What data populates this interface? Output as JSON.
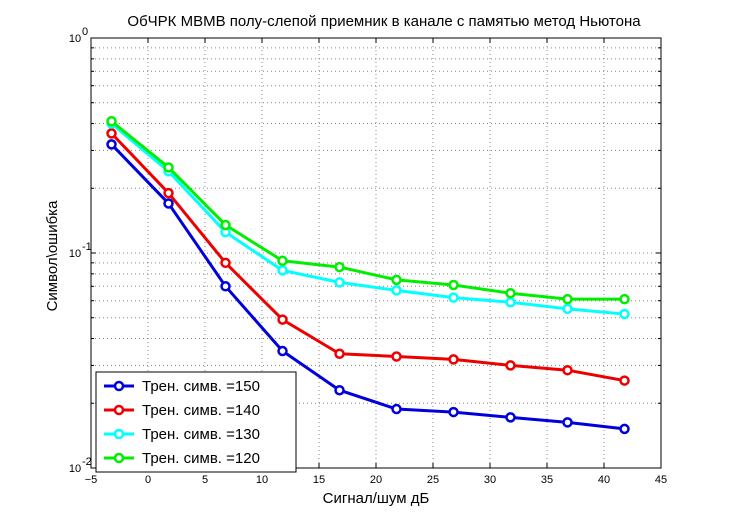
{
  "chart_data": {
    "type": "line",
    "title": "ОбЧРК МВМВ полу-слепой приемник в канале с памятью метод Ньютона",
    "xlabel": "Сигнал/шум дБ",
    "ylabel": "Символ\\ошибка",
    "xlim": [
      -5,
      45
    ],
    "ylim": [
      0.01,
      1
    ],
    "yscale": "log",
    "grid": true,
    "legend_position": "bottom-left",
    "x": [
      -3.2,
      1.8,
      6.8,
      11.8,
      16.8,
      21.8,
      26.8,
      31.8,
      36.8,
      41.8
    ],
    "x_ticks": [
      "−5",
      "0",
      "5",
      "10",
      "15",
      "20",
      "25",
      "30",
      "35",
      "40",
      "45"
    ],
    "y_ticks": [
      {
        "base": "10",
        "exp": "0",
        "value": 1
      },
      {
        "base": "10",
        "exp": "-1",
        "value": 0.1
      },
      {
        "base": "10",
        "exp": "-2",
        "value": 0.01
      }
    ],
    "series": [
      {
        "name": "Трен. симв. =150",
        "color": "#0000dd",
        "values": [
          0.32,
          0.17,
          0.07,
          0.035,
          0.023,
          0.0188,
          0.0182,
          0.0172,
          0.0163,
          0.0152
        ]
      },
      {
        "name": "Трен. симв. =140",
        "color": "#ee0000",
        "values": [
          0.36,
          0.19,
          0.09,
          0.049,
          0.034,
          0.033,
          0.032,
          0.03,
          0.0285,
          0.0255
        ]
      },
      {
        "name": "Трен. симв. =130",
        "color": "#00ffff",
        "values": [
          0.4,
          0.24,
          0.125,
          0.083,
          0.073,
          0.067,
          0.062,
          0.059,
          0.055,
          0.052
        ]
      },
      {
        "name": "Трен. симв. =120",
        "color": "#00ee00",
        "values": [
          0.41,
          0.25,
          0.135,
          0.092,
          0.086,
          0.075,
          0.071,
          0.065,
          0.061,
          0.061
        ]
      }
    ]
  }
}
